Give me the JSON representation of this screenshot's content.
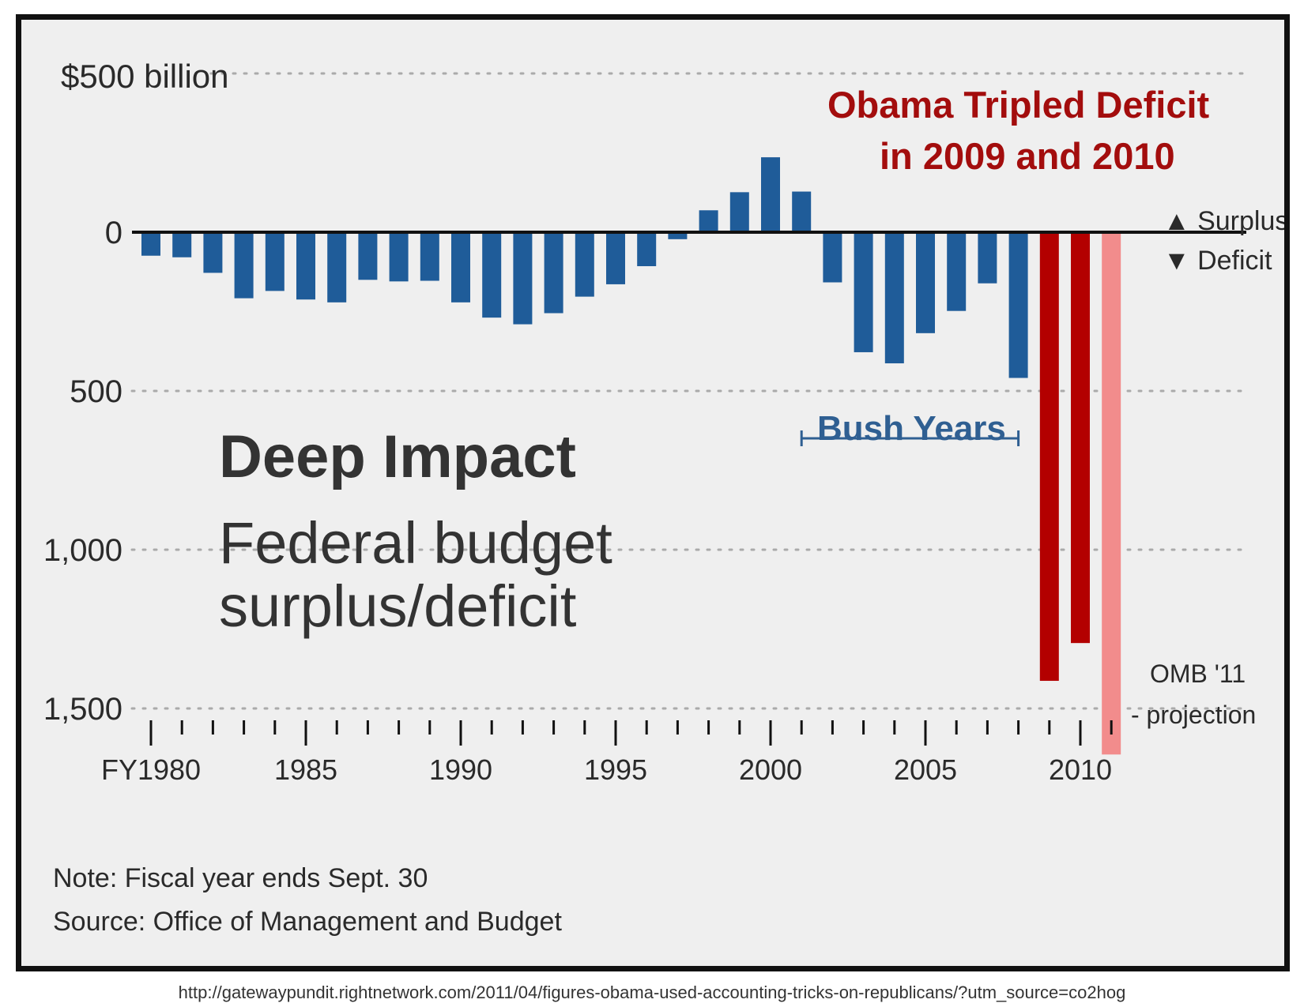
{
  "headline": {
    "line1": "Obama Tripled Deficit",
    "line2": "in 2009 and 2010"
  },
  "title": {
    "main": "Deep Impact",
    "sub1": "Federal budget",
    "sub2": "surplus/deficit"
  },
  "legend": {
    "surplus": "▲ Surplus",
    "deficit": "▼ Deficit"
  },
  "annotations": {
    "bush_years": "Bush Years",
    "bush_range": [
      2001,
      2008
    ],
    "projection_line1": "OMB '11",
    "projection_line2": "- projection"
  },
  "footer": {
    "note": "Note: Fiscal year ends Sept. 30",
    "source": "Source: Office of Management and Budget"
  },
  "url": "http://gatewaypundit.rightnetwork.com/2011/04/figures-obama-used-accounting-tricks-on-republicans/?utm_source=co2hog",
  "chart_data": {
    "type": "bar",
    "title": "Deep Impact: Federal budget surplus/deficit",
    "xlabel": "",
    "ylabel": "$ billion",
    "ylim": [
      -1650,
      500
    ],
    "ytop_label": "$500 billion",
    "yticks": [
      {
        "value": 0,
        "label": "0"
      },
      {
        "value": -500,
        "label": "500"
      },
      {
        "value": -1000,
        "label": "1,000"
      },
      {
        "value": -1500,
        "label": "1,500"
      }
    ],
    "xticks": [
      {
        "year": 1980,
        "label": "FY1980"
      },
      {
        "year": 1985,
        "label": "1985"
      },
      {
        "year": 1990,
        "label": "1990"
      },
      {
        "year": 1995,
        "label": "1995"
      },
      {
        "year": 2000,
        "label": "2000"
      },
      {
        "year": 2005,
        "label": "2005"
      },
      {
        "year": 2010,
        "label": "2010"
      }
    ],
    "categories": [
      1980,
      1981,
      1982,
      1983,
      1984,
      1985,
      1986,
      1987,
      1988,
      1989,
      1990,
      1991,
      1992,
      1993,
      1994,
      1995,
      1996,
      1997,
      1998,
      1999,
      2000,
      2001,
      2002,
      2003,
      2004,
      2005,
      2006,
      2007,
      2008,
      2009,
      2010,
      2011
    ],
    "values": [
      -74,
      -79,
      -128,
      -208,
      -185,
      -212,
      -221,
      -150,
      -155,
      -153,
      -221,
      -269,
      -290,
      -255,
      -203,
      -164,
      -107,
      -22,
      69,
      126,
      236,
      128,
      -158,
      -378,
      -413,
      -318,
      -248,
      -161,
      -459,
      -1413,
      -1294,
      -1645
    ],
    "colors": {
      "bush_blue": "#1f5c99",
      "obama_red": "#b30000",
      "projection_pink": "#f28c8c",
      "gridline": "#aaaaaa",
      "axis": "#111111"
    },
    "bar_categories": [
      "history",
      "history",
      "history",
      "history",
      "history",
      "history",
      "history",
      "history",
      "history",
      "history",
      "history",
      "history",
      "history",
      "history",
      "history",
      "history",
      "history",
      "history",
      "history",
      "history",
      "history",
      "history",
      "history",
      "history",
      "history",
      "history",
      "history",
      "history",
      "history",
      "obama",
      "obama",
      "projection"
    ]
  }
}
